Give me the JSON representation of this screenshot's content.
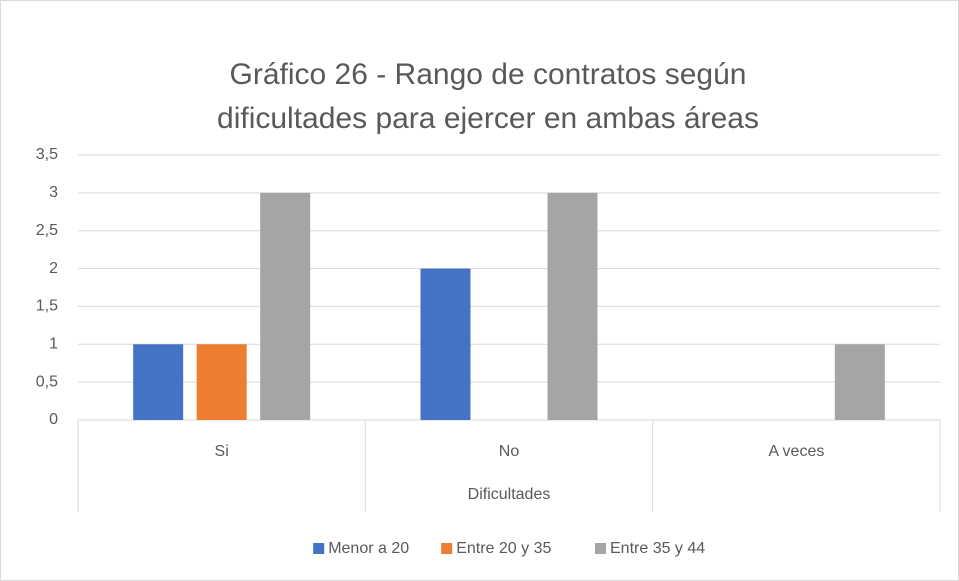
{
  "chart_data": {
    "type": "bar",
    "title": [
      "Gráfico 26 - Rango de contratos según",
      "dificultades para ejercer en ambas áreas"
    ],
    "x_label": "Dificultades",
    "categories": [
      "Si",
      "No",
      "A veces"
    ],
    "series": [
      {
        "name": "Menor a 20",
        "color": "#4472c4",
        "values": [
          1,
          2,
          0
        ]
      },
      {
        "name": "Entre 20 y 35",
        "color": "#ed7d31",
        "values": [
          1,
          0,
          0
        ]
      },
      {
        "name": "Entre 35 y 44",
        "color": "#a5a5a5",
        "values": [
          3,
          3,
          1
        ]
      }
    ],
    "ylim": [
      0,
      3.5
    ],
    "yticks": [
      0,
      {
        "value": 0.5,
        "label": "0,5"
      },
      1,
      {
        "value": 1.5,
        "label": "1,5"
      },
      2,
      {
        "value": 2.5,
        "label": "2,5"
      },
      3,
      {
        "value": 3.5,
        "label": "3,5"
      }
    ],
    "grid": true,
    "legend": "bottom"
  }
}
